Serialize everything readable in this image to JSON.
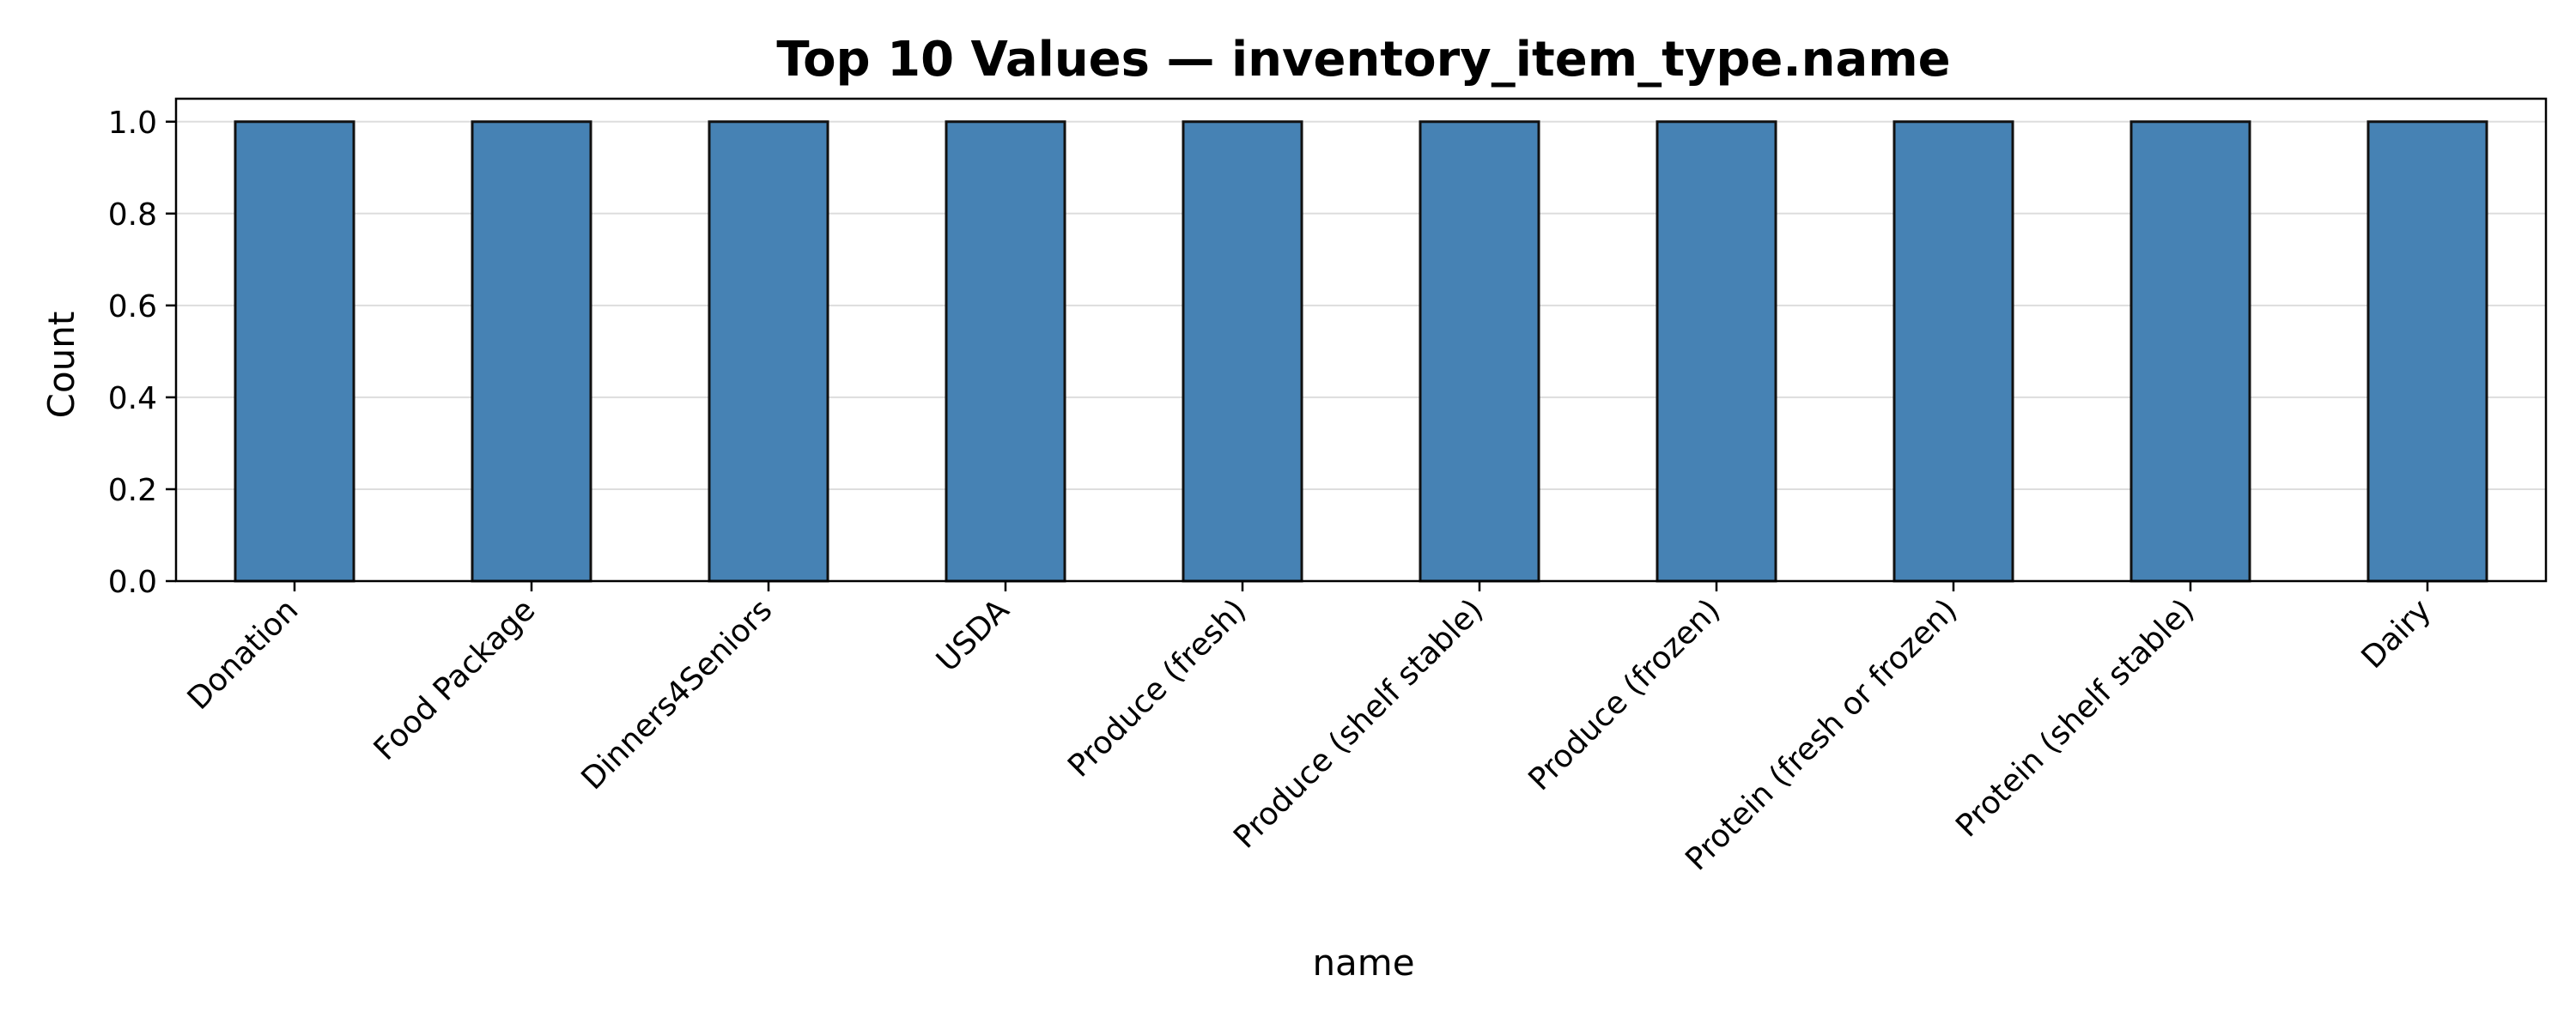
{
  "chart_data": {
    "type": "bar",
    "title": "Top 10 Values — inventory_item_type.name",
    "xlabel": "name",
    "ylabel": "Count",
    "categories": [
      "Donation",
      "Food Package",
      "Dinners4Seniors",
      "USDA",
      "Produce (fresh)",
      "Produce (shelf stable)",
      "Produce (frozen)",
      "Protein (fresh or frozen)",
      "Protein (shelf stable)",
      "Dairy"
    ],
    "values": [
      1,
      1,
      1,
      1,
      1,
      1,
      1,
      1,
      1,
      1
    ],
    "ylim": [
      0,
      1.05
    ],
    "yticks": [
      "0.0",
      "0.2",
      "0.4",
      "0.6",
      "0.8",
      "1.0"
    ],
    "grid": "horizontal",
    "legend": "none",
    "colors": {
      "bar": "#4682b4",
      "bar_edge": "#111111",
      "grid": "#dddddd",
      "axis": "#000000"
    }
  }
}
